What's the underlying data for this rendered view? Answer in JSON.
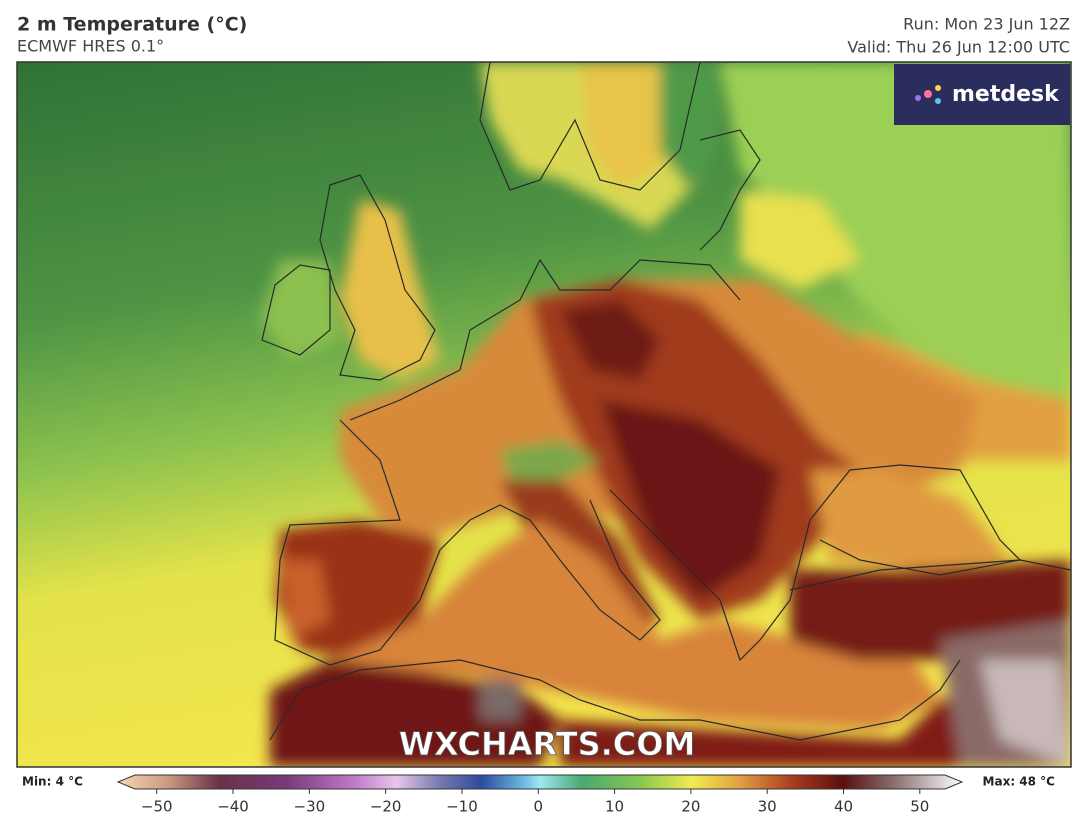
{
  "header": {
    "title": "2 m Temperature (°C)",
    "subtitle": "ECMWF HRES 0.1°",
    "run": "Run: Mon 23 Jun 12Z",
    "valid": "Valid: Thu 26 Jun 12:00 UTC"
  },
  "logo": "metdesk",
  "watermark": "WXCHARTS.COM",
  "colorbar": {
    "min_label": "Min: 4 °C",
    "max_label": "Max: 48 °C",
    "lim": [
      -53.5,
      53.3
    ],
    "ticks": [
      {
        "value": -50,
        "label": "−50"
      },
      {
        "value": -40,
        "label": "−40"
      },
      {
        "value": -30,
        "label": "−30"
      },
      {
        "value": -20,
        "label": "−20"
      },
      {
        "value": -10,
        "label": "−10"
      },
      0,
      10,
      20,
      30,
      40,
      50
    ]
  }
}
